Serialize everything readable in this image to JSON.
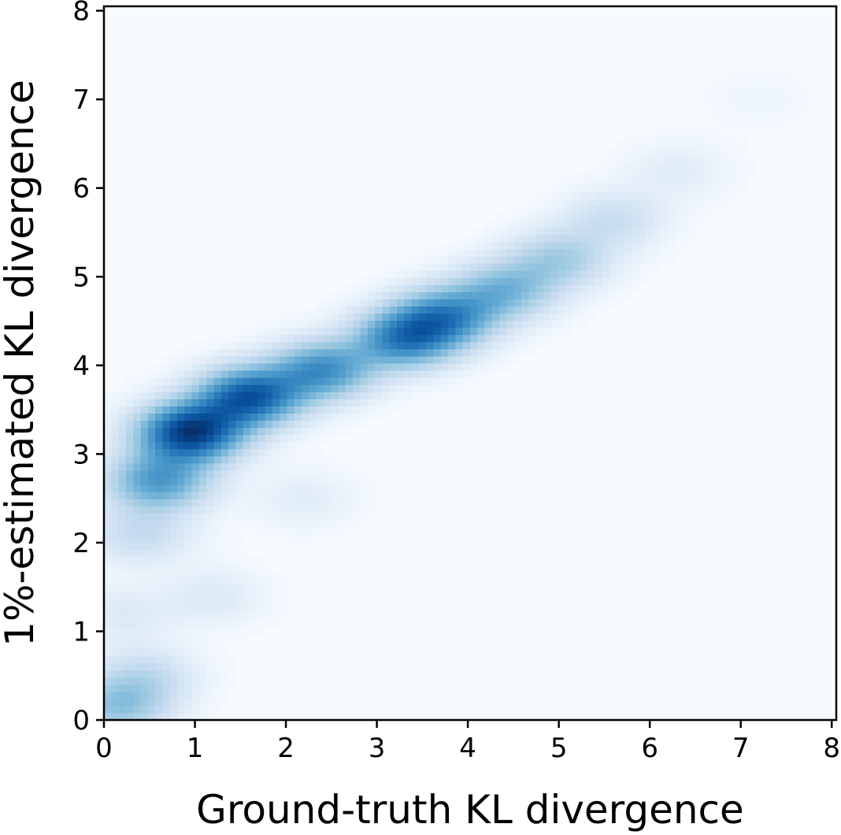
{
  "chart_data": {
    "type": "heatmap",
    "title": "",
    "xlabel": "Ground-truth KL divergence",
    "ylabel": "1%-estimated KL divergence",
    "xlim": [
      0,
      8.05
    ],
    "ylim": [
      0,
      8.05
    ],
    "xticks": [
      0,
      1,
      2,
      3,
      4,
      5,
      6,
      7,
      8
    ],
    "yticks": [
      0,
      1,
      2,
      3,
      4,
      5,
      6,
      7,
      8
    ],
    "xtick_labels": [
      "0",
      "1",
      "2",
      "3",
      "4",
      "5",
      "6",
      "7",
      "8"
    ],
    "ytick_labels": [
      "0",
      "1",
      "2",
      "3",
      "4",
      "5",
      "6",
      "7",
      "8"
    ],
    "colormap": "Blues",
    "grid": false,
    "colorbar": false,
    "density_peaks": [
      {
        "x": 0.95,
        "y": 3.25,
        "relative_density": 1.0
      },
      {
        "x": 1.6,
        "y": 3.65,
        "relative_density": 0.85
      },
      {
        "x": 2.4,
        "y": 3.95,
        "relative_density": 0.6
      },
      {
        "x": 3.3,
        "y": 4.3,
        "relative_density": 0.65
      },
      {
        "x": 3.75,
        "y": 4.55,
        "relative_density": 0.6
      },
      {
        "x": 4.4,
        "y": 4.85,
        "relative_density": 0.4
      },
      {
        "x": 5.0,
        "y": 5.2,
        "relative_density": 0.3
      },
      {
        "x": 5.6,
        "y": 5.65,
        "relative_density": 0.18
      },
      {
        "x": 6.3,
        "y": 6.2,
        "relative_density": 0.08
      },
      {
        "x": 7.2,
        "y": 7.0,
        "relative_density": 0.03
      },
      {
        "x": 0.6,
        "y": 2.7,
        "relative_density": 0.55
      },
      {
        "x": 0.4,
        "y": 2.1,
        "relative_density": 0.2
      },
      {
        "x": 0.2,
        "y": 1.2,
        "relative_density": 0.1
      },
      {
        "x": 0.15,
        "y": 0.15,
        "relative_density": 0.35
      },
      {
        "x": 0.45,
        "y": 0.5,
        "relative_density": 0.2
      },
      {
        "x": 1.2,
        "y": 1.4,
        "relative_density": 0.1
      },
      {
        "x": 2.2,
        "y": 2.5,
        "relative_density": 0.08
      }
    ],
    "colors": {
      "background": "#f7fbff",
      "low": "#deebf7",
      "mid": "#6baed6",
      "high": "#08306b",
      "axis": "#000000"
    }
  }
}
